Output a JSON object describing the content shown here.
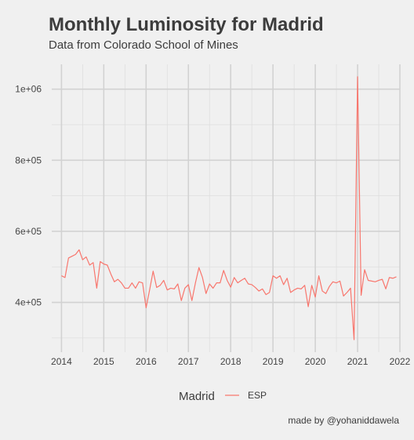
{
  "chart_data": {
    "type": "line",
    "title": "Monthly Luminosity for Madrid",
    "subtitle": "Data from Colorado School of Mines",
    "caption": "made by @yohaniddawela",
    "legend": {
      "title": "Madrid",
      "placement": "bottom",
      "entries": [
        "ESP"
      ]
    },
    "xlim": [
      2013.77,
      2022.0
    ],
    "ylim": [
      260000,
      1070000
    ],
    "x_ticks": [
      2014,
      2015,
      2016,
      2017,
      2018,
      2019,
      2020,
      2021,
      2022
    ],
    "x_tick_labels": [
      "2014",
      "2015",
      "2016",
      "2017",
      "2018",
      "2019",
      "2020",
      "2021",
      "2022"
    ],
    "y_ticks": [
      400000,
      600000,
      800000,
      1000000
    ],
    "y_tick_labels": [
      "4e+05",
      "6e+05",
      "8e+05",
      "1e+06"
    ],
    "grid": true,
    "series": [
      {
        "name": "ESP",
        "color": "#f8766d",
        "start_year": 2014,
        "start_month": 1,
        "values": [
          475000,
          470000,
          525000,
          530000,
          535000,
          548000,
          520000,
          528000,
          505000,
          512000,
          440000,
          515000,
          508000,
          505000,
          480000,
          458000,
          465000,
          455000,
          440000,
          440000,
          455000,
          440000,
          458000,
          455000,
          385000,
          435000,
          488000,
          442000,
          448000,
          462000,
          435000,
          440000,
          438000,
          452000,
          405000,
          440000,
          450000,
          405000,
          455000,
          498000,
          470000,
          425000,
          452000,
          440000,
          455000,
          455000,
          490000,
          462000,
          443000,
          470000,
          455000,
          462000,
          468000,
          452000,
          450000,
          442000,
          432000,
          438000,
          422000,
          428000,
          475000,
          468000,
          475000,
          450000,
          468000,
          428000,
          435000,
          440000,
          438000,
          448000,
          388000,
          448000,
          415000,
          475000,
          432000,
          425000,
          445000,
          458000,
          455000,
          460000,
          418000,
          428000,
          440000,
          295000,
          1035000,
          420000,
          492000,
          462000,
          460000,
          458000,
          462000,
          465000,
          438000,
          470000,
          468000,
          472000
        ]
      }
    ]
  }
}
